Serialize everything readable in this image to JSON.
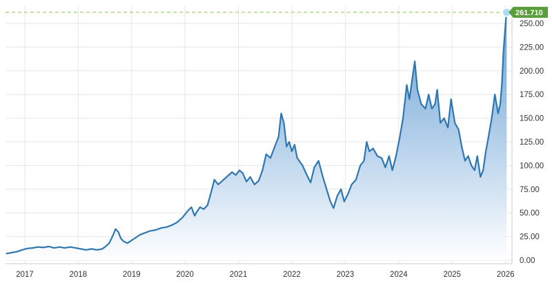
{
  "chart_data": {
    "type": "area",
    "title": "",
    "xlabel": "",
    "ylabel": "",
    "x_tick_labels": [
      "2017",
      "2018",
      "2019",
      "2020",
      "2021",
      "2022",
      "2023",
      "2024",
      "2025",
      "2026"
    ],
    "y_tick_labels": [
      "0.00",
      "25.00",
      "50.00",
      "75.00",
      "100.00",
      "125.00",
      "150.00",
      "175.00",
      "200.00",
      "225.00",
      "250.00"
    ],
    "ylim": [
      0,
      262
    ],
    "xlim": [
      2016.64,
      2026.12
    ],
    "grid": true,
    "last_value_label": "261.710",
    "colors": {
      "line": "#2e76b0",
      "fill_top": "#5f9bd3",
      "fill_bottom": "#ffffff",
      "last_value_tag": "#5a9e3c",
      "last_value_guide": "#8bc34a",
      "last_point_marker": "#a9dcf2"
    },
    "series": [
      {
        "points": [
          [
            2016.65,
            7
          ],
          [
            2016.75,
            8
          ],
          [
            2016.85,
            9
          ],
          [
            2016.95,
            11
          ],
          [
            2017.05,
            12.5
          ],
          [
            2017.15,
            13
          ],
          [
            2017.25,
            14
          ],
          [
            2017.35,
            13.5
          ],
          [
            2017.45,
            14.5
          ],
          [
            2017.55,
            13
          ],
          [
            2017.65,
            14
          ],
          [
            2017.75,
            13
          ],
          [
            2017.85,
            14
          ],
          [
            2017.95,
            13
          ],
          [
            2018.05,
            12
          ],
          [
            2018.15,
            11
          ],
          [
            2018.25,
            12
          ],
          [
            2018.35,
            11
          ],
          [
            2018.45,
            12
          ],
          [
            2018.5,
            14
          ],
          [
            2018.58,
            18
          ],
          [
            2018.65,
            26
          ],
          [
            2018.7,
            33
          ],
          [
            2018.75,
            30
          ],
          [
            2018.8,
            23
          ],
          [
            2018.85,
            20
          ],
          [
            2018.92,
            18
          ],
          [
            2019.0,
            21
          ],
          [
            2019.08,
            24
          ],
          [
            2019.16,
            27
          ],
          [
            2019.25,
            29
          ],
          [
            2019.35,
            31
          ],
          [
            2019.45,
            32
          ],
          [
            2019.55,
            34
          ],
          [
            2019.65,
            35
          ],
          [
            2019.75,
            37
          ],
          [
            2019.85,
            40
          ],
          [
            2019.95,
            45
          ],
          [
            2020.05,
            52
          ],
          [
            2020.12,
            56
          ],
          [
            2020.18,
            47
          ],
          [
            2020.22,
            51
          ],
          [
            2020.28,
            56
          ],
          [
            2020.35,
            54
          ],
          [
            2020.42,
            58
          ],
          [
            2020.48,
            70
          ],
          [
            2020.55,
            85
          ],
          [
            2020.62,
            80
          ],
          [
            2020.7,
            84
          ],
          [
            2020.78,
            88
          ],
          [
            2020.88,
            93
          ],
          [
            2020.95,
            90
          ],
          [
            2021.02,
            95
          ],
          [
            2021.08,
            92
          ],
          [
            2021.15,
            83
          ],
          [
            2021.22,
            88
          ],
          [
            2021.3,
            80
          ],
          [
            2021.38,
            84
          ],
          [
            2021.45,
            95
          ],
          [
            2021.52,
            112
          ],
          [
            2021.6,
            108
          ],
          [
            2021.68,
            120
          ],
          [
            2021.75,
            130
          ],
          [
            2021.8,
            155
          ],
          [
            2021.85,
            145
          ],
          [
            2021.9,
            120
          ],
          [
            2021.95,
            125
          ],
          [
            2022.0,
            115
          ],
          [
            2022.05,
            122
          ],
          [
            2022.1,
            108
          ],
          [
            2022.2,
            100
          ],
          [
            2022.28,
            90
          ],
          [
            2022.35,
            82
          ],
          [
            2022.42,
            98
          ],
          [
            2022.5,
            105
          ],
          [
            2022.58,
            88
          ],
          [
            2022.65,
            75
          ],
          [
            2022.72,
            62
          ],
          [
            2022.78,
            55
          ],
          [
            2022.85,
            68
          ],
          [
            2022.92,
            75
          ],
          [
            2022.98,
            62
          ],
          [
            2023.05,
            70
          ],
          [
            2023.12,
            80
          ],
          [
            2023.2,
            85
          ],
          [
            2023.28,
            100
          ],
          [
            2023.35,
            105
          ],
          [
            2023.4,
            125
          ],
          [
            2023.45,
            115
          ],
          [
            2023.52,
            118
          ],
          [
            2023.6,
            110
          ],
          [
            2023.68,
            108
          ],
          [
            2023.75,
            98
          ],
          [
            2023.82,
            110
          ],
          [
            2023.88,
            95
          ],
          [
            2023.95,
            110
          ],
          [
            2024.02,
            130
          ],
          [
            2024.08,
            150
          ],
          [
            2024.15,
            185
          ],
          [
            2024.2,
            170
          ],
          [
            2024.25,
            190
          ],
          [
            2024.3,
            210
          ],
          [
            2024.35,
            180
          ],
          [
            2024.42,
            165
          ],
          [
            2024.5,
            160
          ],
          [
            2024.56,
            175
          ],
          [
            2024.62,
            160
          ],
          [
            2024.68,
            165
          ],
          [
            2024.72,
            180
          ],
          [
            2024.78,
            145
          ],
          [
            2024.85,
            150
          ],
          [
            2024.92,
            140
          ],
          [
            2024.98,
            170
          ],
          [
            2025.05,
            145
          ],
          [
            2025.12,
            138
          ],
          [
            2025.18,
            120
          ],
          [
            2025.24,
            105
          ],
          [
            2025.3,
            110
          ],
          [
            2025.36,
            100
          ],
          [
            2025.42,
            95
          ],
          [
            2025.47,
            110
          ],
          [
            2025.53,
            88
          ],
          [
            2025.58,
            95
          ],
          [
            2025.63,
            115
          ],
          [
            2025.68,
            130
          ],
          [
            2025.74,
            150
          ],
          [
            2025.8,
            175
          ],
          [
            2025.86,
            155
          ],
          [
            2025.9,
            165
          ],
          [
            2025.93,
            185
          ],
          [
            2025.96,
            220
          ],
          [
            2026.0,
            250
          ],
          [
            2026.02,
            261.71
          ]
        ]
      }
    ]
  }
}
